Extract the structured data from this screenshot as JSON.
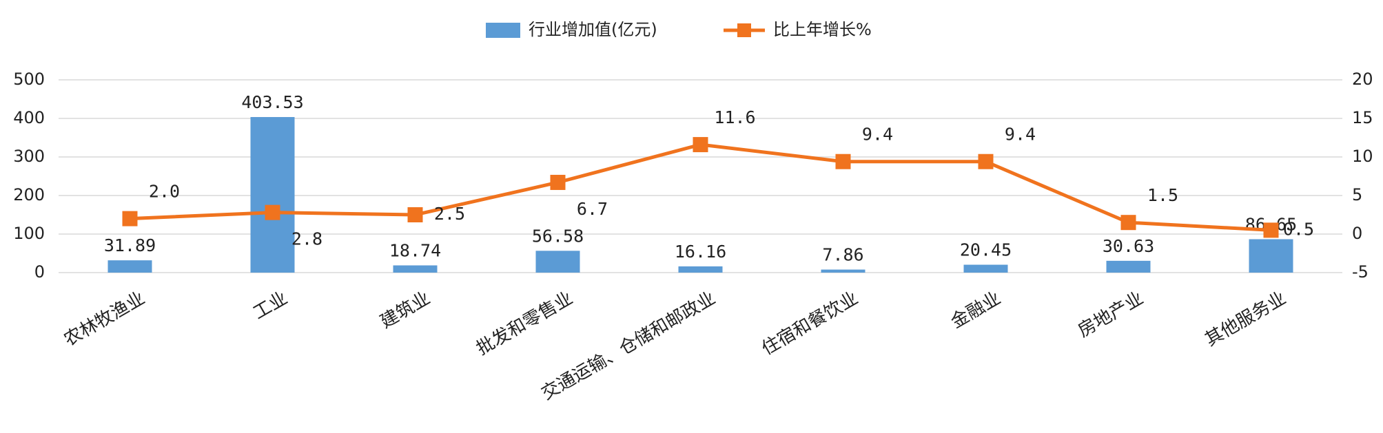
{
  "chart_data": {
    "type": "bar_line",
    "categories": [
      "农林牧渔业",
      "工业",
      "建筑业",
      "批发和零售业",
      "交通运输、仓储和邮政业",
      "住宿和餐饮业",
      "金融业",
      "房地产业",
      "其他服务业"
    ],
    "series": [
      {
        "name": "行业增加值(亿元)",
        "type": "bar",
        "color": "#5b9bd5",
        "values": [
          31.89,
          403.53,
          18.74,
          56.58,
          16.16,
          7.86,
          20.45,
          30.63,
          86.65
        ]
      },
      {
        "name": "比上年增长%",
        "type": "line",
        "axis": "y2",
        "color": "#f0731e",
        "values": [
          2.0,
          2.8,
          2.5,
          6.7,
          11.6,
          9.4,
          9.4,
          1.5,
          0.5
        ],
        "value_labels": [
          "2.0",
          "2.8",
          "2.5",
          "6.7",
          "11.6",
          "9.4",
          "9.4",
          "1.5",
          "0.5"
        ]
      }
    ],
    "ylim": [
      0,
      500
    ],
    "yticks": [
      0,
      100,
      200,
      300,
      400,
      500
    ],
    "y2lim": [
      -5,
      20
    ],
    "y2ticks": [
      -5,
      0,
      5,
      10,
      15,
      20
    ],
    "grid": true,
    "legend": "top"
  }
}
